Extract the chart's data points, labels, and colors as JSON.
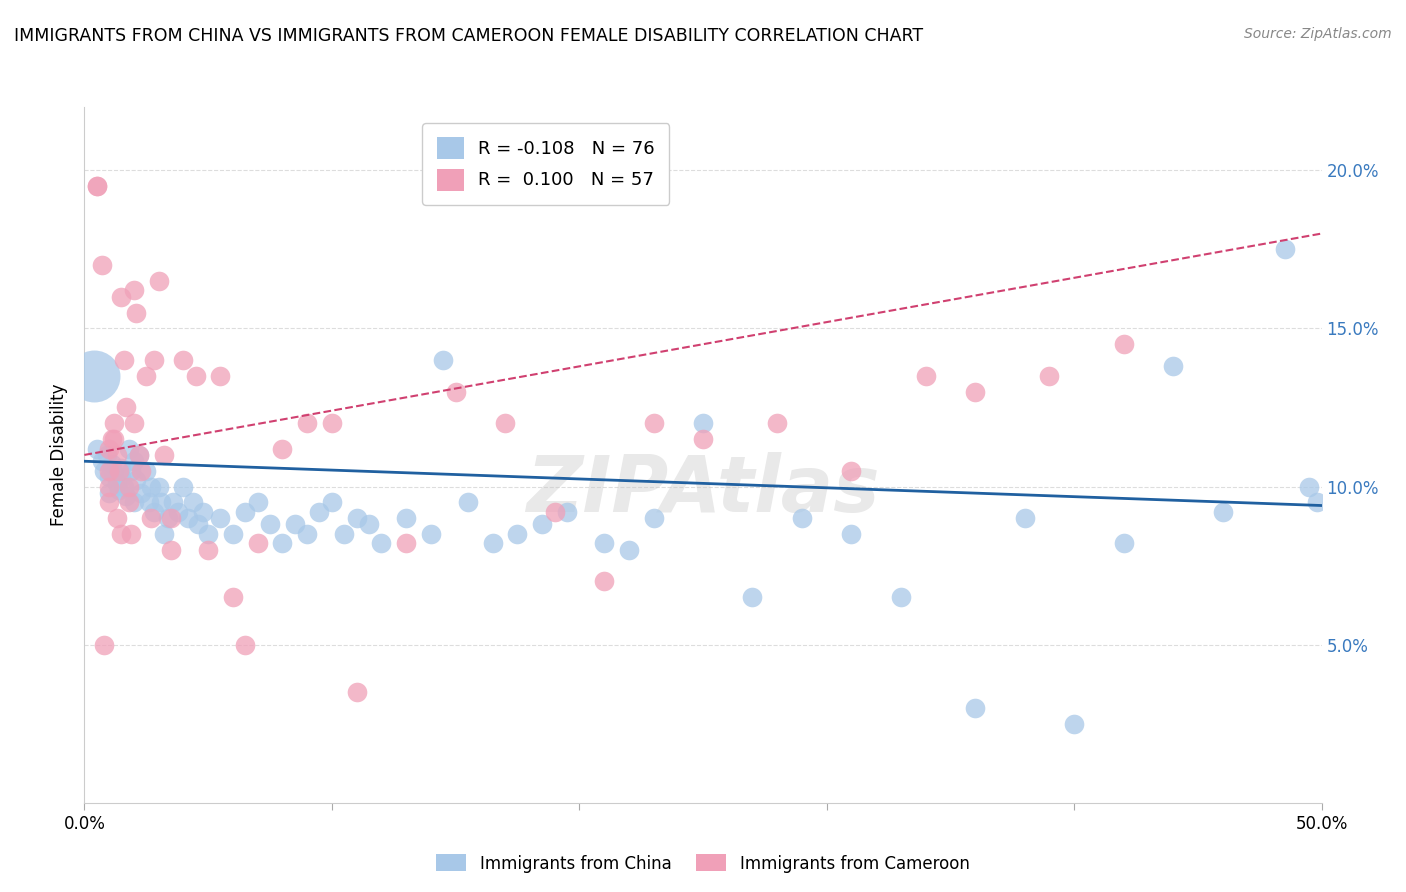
{
  "title": "IMMIGRANTS FROM CHINA VS IMMIGRANTS FROM CAMEROON FEMALE DISABILITY CORRELATION CHART",
  "source": "Source: ZipAtlas.com",
  "ylabel": "Female Disability",
  "x_min": 0.0,
  "x_max": 0.5,
  "y_min": 0.0,
  "y_max": 0.22,
  "y_ticks_right": [
    0.05,
    0.1,
    0.15,
    0.2
  ],
  "y_tick_labels_right": [
    "5.0%",
    "10.0%",
    "15.0%",
    "20.0%"
  ],
  "china_R": -0.108,
  "china_N": 76,
  "cameroon_R": 0.1,
  "cameroon_N": 57,
  "china_color": "#a8c8e8",
  "cameroon_color": "#f0a0b8",
  "china_line_color": "#2060a0",
  "cameroon_line_color": "#d04070",
  "china_x": [
    0.005,
    0.007,
    0.008,
    0.009,
    0.01,
    0.01,
    0.011,
    0.012,
    0.013,
    0.014,
    0.015,
    0.015,
    0.016,
    0.017,
    0.018,
    0.019,
    0.02,
    0.02,
    0.021,
    0.022,
    0.023,
    0.025,
    0.026,
    0.027,
    0.028,
    0.03,
    0.031,
    0.032,
    0.034,
    0.036,
    0.038,
    0.04,
    0.042,
    0.044,
    0.046,
    0.048,
    0.05,
    0.055,
    0.06,
    0.065,
    0.07,
    0.075,
    0.08,
    0.085,
    0.09,
    0.095,
    0.1,
    0.105,
    0.11,
    0.115,
    0.12,
    0.13,
    0.14,
    0.145,
    0.155,
    0.165,
    0.175,
    0.185,
    0.195,
    0.21,
    0.22,
    0.23,
    0.25,
    0.27,
    0.29,
    0.31,
    0.33,
    0.36,
    0.38,
    0.4,
    0.42,
    0.44,
    0.46,
    0.485,
    0.495,
    0.498
  ],
  "china_y": [
    0.112,
    0.108,
    0.105,
    0.11,
    0.103,
    0.098,
    0.107,
    0.104,
    0.101,
    0.099,
    0.106,
    0.103,
    0.1,
    0.097,
    0.112,
    0.105,
    0.108,
    0.095,
    0.102,
    0.11,
    0.098,
    0.105,
    0.095,
    0.1,
    0.092,
    0.1,
    0.095,
    0.085,
    0.09,
    0.095,
    0.092,
    0.1,
    0.09,
    0.095,
    0.088,
    0.092,
    0.085,
    0.09,
    0.085,
    0.092,
    0.095,
    0.088,
    0.082,
    0.088,
    0.085,
    0.092,
    0.095,
    0.085,
    0.09,
    0.088,
    0.082,
    0.09,
    0.085,
    0.14,
    0.095,
    0.082,
    0.085,
    0.088,
    0.092,
    0.082,
    0.08,
    0.09,
    0.12,
    0.065,
    0.09,
    0.085,
    0.065,
    0.03,
    0.09,
    0.025,
    0.082,
    0.138,
    0.092,
    0.175,
    0.1,
    0.095
  ],
  "china_large_x": [
    0.004
  ],
  "china_large_y": [
    0.135
  ],
  "cameroon_x": [
    0.005,
    0.007,
    0.008,
    0.01,
    0.01,
    0.01,
    0.01,
    0.011,
    0.012,
    0.013,
    0.013,
    0.014,
    0.015,
    0.015,
    0.016,
    0.017,
    0.018,
    0.018,
    0.019,
    0.02,
    0.021,
    0.022,
    0.023,
    0.025,
    0.027,
    0.028,
    0.03,
    0.032,
    0.035,
    0.04,
    0.045,
    0.05,
    0.055,
    0.06,
    0.065,
    0.07,
    0.08,
    0.09,
    0.1,
    0.11,
    0.13,
    0.15,
    0.17,
    0.19,
    0.21,
    0.23,
    0.25,
    0.28,
    0.31,
    0.34,
    0.36,
    0.39,
    0.42,
    0.005,
    0.012,
    0.02,
    0.035
  ],
  "cameroon_y": [
    0.195,
    0.17,
    0.05,
    0.112,
    0.105,
    0.1,
    0.095,
    0.115,
    0.12,
    0.09,
    0.11,
    0.105,
    0.085,
    0.16,
    0.14,
    0.125,
    0.1,
    0.095,
    0.085,
    0.162,
    0.155,
    0.11,
    0.105,
    0.135,
    0.09,
    0.14,
    0.165,
    0.11,
    0.08,
    0.14,
    0.135,
    0.08,
    0.135,
    0.065,
    0.05,
    0.082,
    0.112,
    0.12,
    0.12,
    0.035,
    0.082,
    0.13,
    0.12,
    0.092,
    0.07,
    0.12,
    0.115,
    0.12,
    0.105,
    0.135,
    0.13,
    0.135,
    0.145,
    0.195,
    0.115,
    0.12,
    0.09
  ],
  "grid_color": "#dddddd",
  "bg_color": "#ffffff"
}
